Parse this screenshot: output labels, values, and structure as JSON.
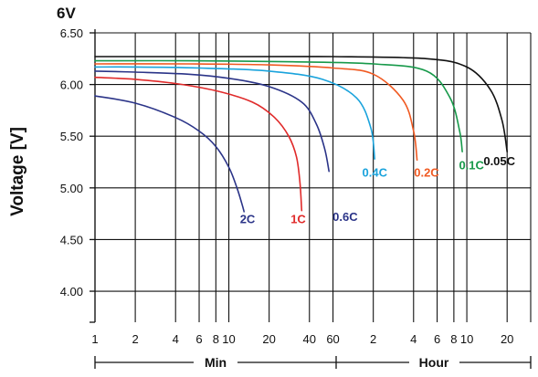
{
  "chart_data": {
    "type": "line",
    "title": "",
    "unit_label": "6V",
    "ylabel": "Voltage [V]",
    "y_ticks": [
      "6.50",
      "6.00",
      "5.50",
      "5.00",
      "4.50",
      "4.00"
    ],
    "x_ticks": [
      {
        "minutes": 1,
        "label": "1"
      },
      {
        "minutes": 2,
        "label": "2"
      },
      {
        "minutes": 4,
        "label": "4"
      },
      {
        "minutes": 6,
        "label": "6"
      },
      {
        "minutes": 8,
        "label": "8"
      },
      {
        "minutes": 10,
        "label": "10"
      },
      {
        "minutes": 20,
        "label": "20"
      },
      {
        "minutes": 40,
        "label": "40"
      },
      {
        "minutes": 60,
        "label": "60"
      },
      {
        "minutes": 120,
        "label": "2"
      },
      {
        "minutes": 240,
        "label": "4"
      },
      {
        "minutes": 360,
        "label": "6"
      },
      {
        "minutes": 480,
        "label": "8"
      },
      {
        "minutes": 600,
        "label": "10"
      },
      {
        "minutes": 1200,
        "label": "20"
      }
    ],
    "x_scale": "log",
    "x_units": "minutes",
    "scale_labels": {
      "min": "Min",
      "hour": "Hour"
    },
    "ylim": [
      3.7,
      6.5
    ],
    "xlim": [
      1,
      1800
    ],
    "grid": true,
    "series": [
      {
        "name": "2C",
        "color": "#2b3488",
        "x": [
          1,
          2,
          4,
          6,
          8,
          10,
          11.5,
          12.5,
          13
        ],
        "y": [
          5.89,
          5.82,
          5.68,
          5.55,
          5.4,
          5.2,
          5.0,
          4.85,
          4.77
        ]
      },
      {
        "name": "1C",
        "color": "#e02a2a",
        "x": [
          1,
          2,
          4,
          8,
          15,
          22,
          28,
          32,
          34,
          35
        ],
        "y": [
          6.07,
          6.05,
          6.01,
          5.94,
          5.83,
          5.68,
          5.5,
          5.3,
          5.05,
          4.78
        ]
      },
      {
        "name": "0.6C",
        "color": "#2b3488",
        "x": [
          1,
          2,
          5,
          10,
          20,
          35,
          45,
          52,
          56
        ],
        "y": [
          6.13,
          6.12,
          6.1,
          6.06,
          5.98,
          5.83,
          5.62,
          5.38,
          5.16
        ]
      },
      {
        "name": "0.4C",
        "color": "#1aa3dc",
        "x": [
          1,
          2,
          6,
          20,
          50,
          90,
          115,
          123
        ],
        "y": [
          6.17,
          6.17,
          6.16,
          6.13,
          6.05,
          5.87,
          5.58,
          5.28
        ]
      },
      {
        "name": "0.2C",
        "color": "#f05a22",
        "x": [
          1,
          5,
          20,
          60,
          120,
          200,
          240,
          255
        ],
        "y": [
          6.2,
          6.2,
          6.19,
          6.16,
          6.1,
          5.85,
          5.55,
          5.27
        ]
      },
      {
        "name": "0.1C",
        "color": "#17994a",
        "x": [
          1,
          5,
          30,
          120,
          300,
          450,
          530,
          555
        ],
        "y": [
          6.23,
          6.23,
          6.22,
          6.2,
          6.13,
          5.87,
          5.55,
          5.35
        ]
      },
      {
        "name": "0.05C",
        "color": "#111111",
        "x": [
          1,
          10,
          60,
          300,
          600,
          900,
          1100,
          1200
        ],
        "y": [
          6.27,
          6.27,
          6.27,
          6.25,
          6.17,
          5.95,
          5.65,
          5.35
        ]
      }
    ],
    "curve_labels": [
      {
        "text": "2C",
        "color": "#2b3488",
        "x": 13.8,
        "y": 4.66
      },
      {
        "text": "1C",
        "color": "#e02a2a",
        "x": 33,
        "y": 4.66
      },
      {
        "text": "0.6C",
        "color": "#2b3488",
        "x": 74,
        "y": 4.68
      },
      {
        "text": "0.4C",
        "color": "#1aa3dc",
        "x": 123,
        "y": 5.11
      },
      {
        "text": "0.2C",
        "color": "#f05a22",
        "x": 300,
        "y": 5.11
      },
      {
        "text": "0.1C",
        "color": "#17994a",
        "x": 650,
        "y": 5.18
      },
      {
        "text": "0.05C",
        "color": "#111111",
        "x": 1050,
        "y": 5.22
      }
    ]
  }
}
